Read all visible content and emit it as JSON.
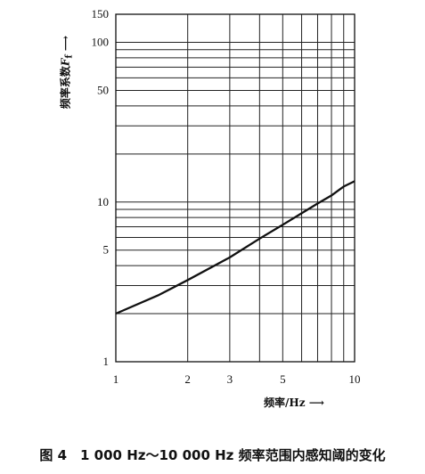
{
  "chart_data": {
    "type": "line",
    "title": "图 4　1 000 Hz～10 000 Hz 频率范围内感知阈的变化",
    "xlabel": "频率/Hz",
    "ylabel": "频率系数",
    "ylabel_symbol": "F",
    "ylabel_subscript": "f",
    "arrow_glyph": "⟶",
    "x_scale": "log",
    "y_scale": "log",
    "xlim": [
      1,
      10
    ],
    "ylim": [
      1,
      150
    ],
    "x_ticks": [
      1,
      2,
      3,
      5,
      10
    ],
    "x_tick_labels": [
      "1",
      "2",
      "3",
      "5",
      "10"
    ],
    "y_ticks": [
      1,
      5,
      10,
      50,
      100,
      150
    ],
    "y_tick_labels": [
      "1",
      "5",
      "10",
      "50",
      "100",
      "150"
    ],
    "x_gridlines": [
      1,
      2,
      3,
      4,
      5,
      6,
      7,
      8,
      9,
      10
    ],
    "y_gridlines": [
      1,
      2,
      3,
      4,
      5,
      6,
      7,
      8,
      9,
      10,
      20,
      30,
      40,
      50,
      60,
      70,
      80,
      90,
      100,
      150
    ],
    "grid": true,
    "series": [
      {
        "x": [
          1,
          1.5,
          2,
          3,
          4,
          5,
          6,
          7,
          8,
          9,
          10
        ],
        "y": [
          2.0,
          2.6,
          3.25,
          4.5,
          5.9,
          7.2,
          8.5,
          9.8,
          11.0,
          12.5,
          13.5
        ]
      }
    ]
  }
}
